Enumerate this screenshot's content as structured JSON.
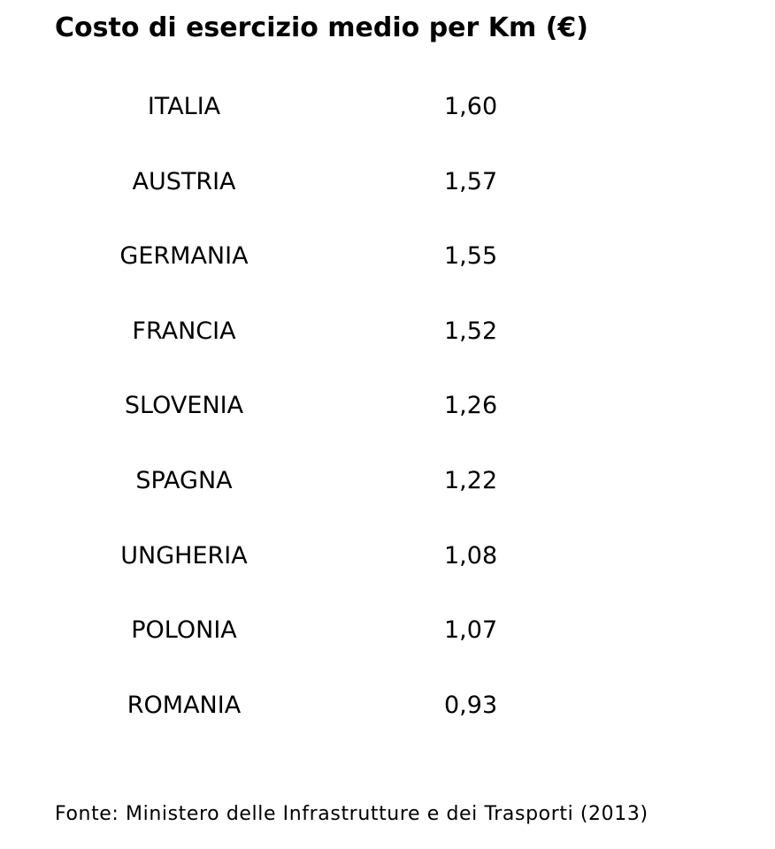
{
  "header": {
    "title": "Costo di esercizio medio per Km (€)"
  },
  "table": {
    "rows": [
      [
        "ITALIA",
        "1,60"
      ],
      [
        "AUSTRIA",
        "1,57"
      ],
      [
        "GERMANIA",
        "1,55"
      ],
      [
        "FRANCIA",
        "1,52"
      ],
      [
        "SLOVENIA",
        "1,26"
      ],
      [
        "SPAGNA",
        "1,22"
      ],
      [
        "UNGHERIA",
        "1,08"
      ],
      [
        "POLONIA",
        "1,07"
      ],
      [
        "ROMANIA",
        "0,93"
      ]
    ]
  },
  "footer": {
    "source": "Fonte: Ministero delle Infrastrutture e dei Trasporti (2013)"
  }
}
